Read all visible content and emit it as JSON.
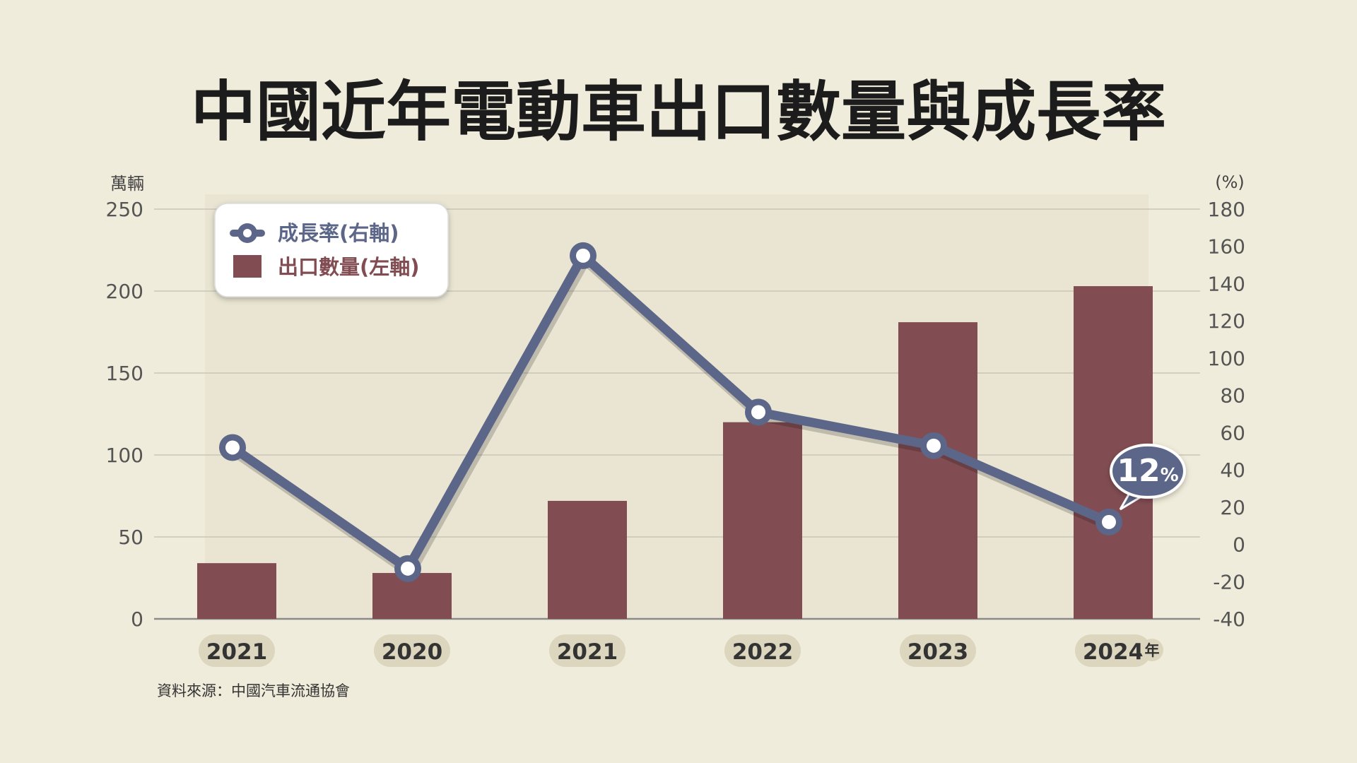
{
  "title": "中國近年電動車出口數量與成長率",
  "source": "資料來源：中國汽車流通協會",
  "colors": {
    "background": "#f0ecdb",
    "bar": "#814d53",
    "line": "#5c6688",
    "grid": "#c9c6b8",
    "axis": "#8a8a8a"
  },
  "chart_data": {
    "type": "bar",
    "title": "中國近年電動車出口數量與成長率",
    "categories": [
      "2021",
      "2020",
      "2021",
      "2022",
      "2023",
      "2024"
    ],
    "x_unit": "年",
    "left_axis": {
      "unit": "萬輛",
      "ylim": [
        0,
        250
      ],
      "ticks": [
        "0",
        "50",
        "100",
        "150",
        "200",
        "250"
      ]
    },
    "right_axis": {
      "unit": "(%)",
      "ylim": [
        -40,
        180
      ],
      "ticks": [
        "-40",
        "-20",
        "0",
        "20",
        "40",
        "60",
        "80",
        "100",
        "120",
        "140",
        "160",
        "180"
      ]
    },
    "grid": true,
    "legend_position": "top-left",
    "series": [
      {
        "name": "出口數量(左軸)",
        "type": "bar",
        "axis": "left",
        "values": [
          34,
          28,
          72,
          120,
          181,
          203
        ]
      },
      {
        "name": "成長率(右軸)",
        "type": "line",
        "axis": "right",
        "values": [
          52,
          -13,
          155,
          71,
          53,
          12
        ]
      }
    ],
    "annotation": {
      "value": "12",
      "unit": "%",
      "category_index": 5
    }
  }
}
